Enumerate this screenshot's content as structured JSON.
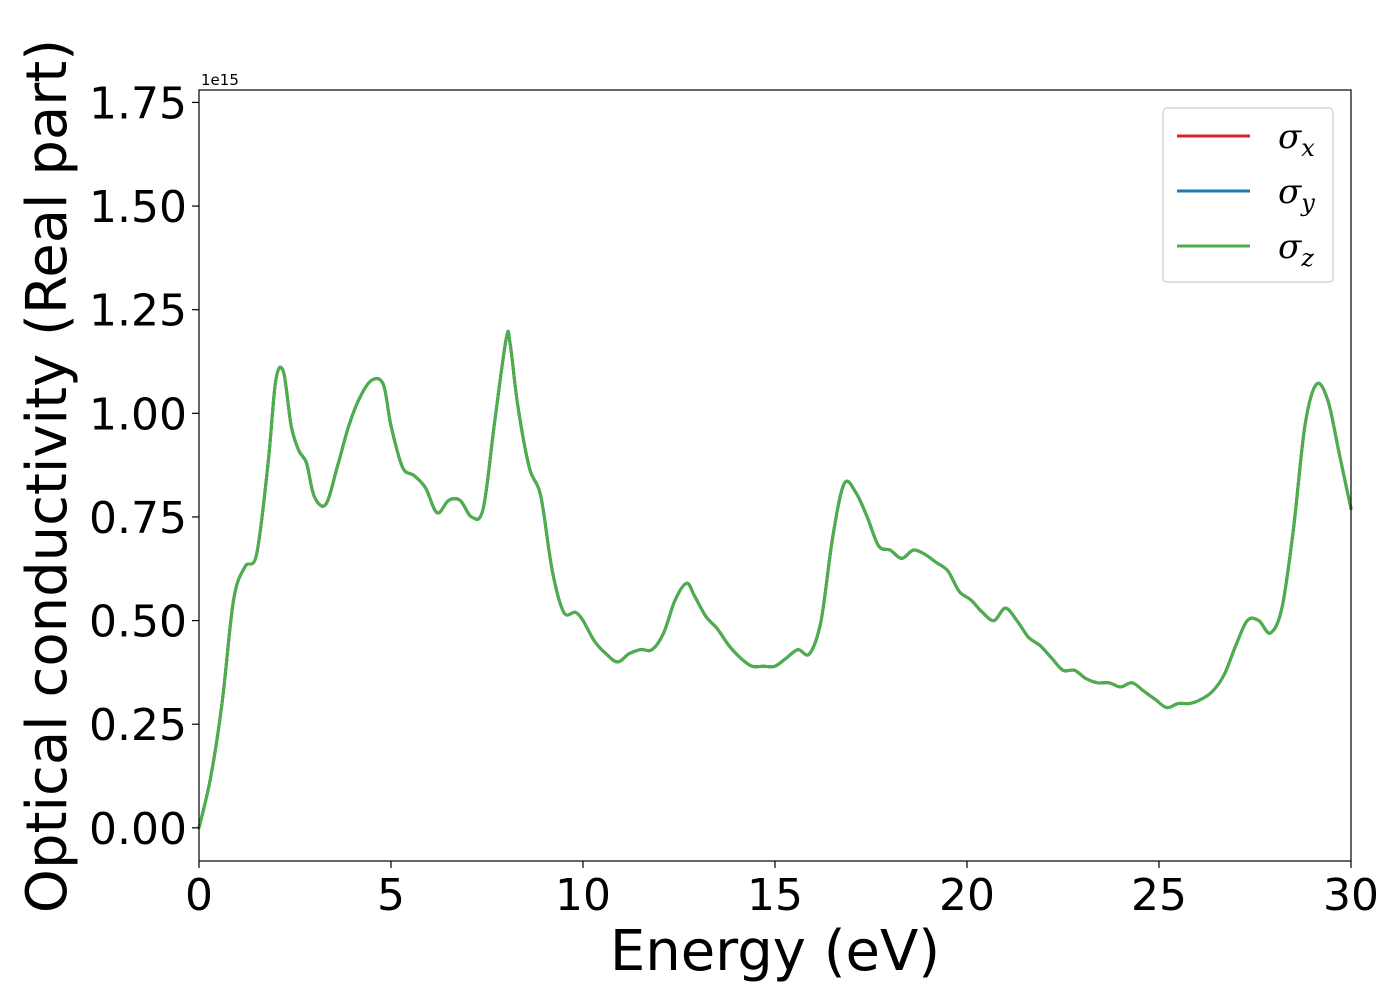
{
  "chart_data": {
    "type": "line",
    "xlabel": "Energy (eV)",
    "ylabel": "Optical conductivity (Real part)",
    "y_offset_text": "1e15",
    "xlim": [
      0,
      30
    ],
    "ylim": [
      -0.08,
      1.78
    ],
    "y_scale_factor": 1000000000000000.0,
    "xticks": [
      0,
      5,
      10,
      15,
      20,
      25,
      30
    ],
    "xtick_labels": [
      "0",
      "5",
      "10",
      "15",
      "20",
      "25",
      "30"
    ],
    "yticks": [
      0.0,
      0.25,
      0.5,
      0.75,
      1.0,
      1.25,
      1.5,
      1.75
    ],
    "ytick_labels": [
      "0.00",
      "0.25",
      "0.50",
      "0.75",
      "1.00",
      "1.25",
      "1.50",
      "1.75"
    ],
    "grid": false,
    "legend_position": "top-right",
    "series": [
      {
        "name": "σx",
        "symbol": "σ",
        "subscript": "x",
        "color": "#d62728"
      },
      {
        "name": "σy",
        "symbol": "σ",
        "subscript": "y",
        "color": "#1f77b4"
      },
      {
        "name": "σz",
        "symbol": "σ",
        "subscript": "z",
        "color": "#4daf4a"
      }
    ],
    "x": [
      0.0,
      0.3,
      0.6,
      0.9,
      1.2,
      1.5,
      1.8,
      2.0,
      2.2,
      2.4,
      2.6,
      2.8,
      3.0,
      3.3,
      3.6,
      3.9,
      4.2,
      4.5,
      4.8,
      5.0,
      5.3,
      5.6,
      5.9,
      6.2,
      6.5,
      6.8,
      7.1,
      7.4,
      7.7,
      8.0,
      8.1,
      8.3,
      8.6,
      8.9,
      9.2,
      9.5,
      9.8,
      10.0,
      10.3,
      10.6,
      10.9,
      11.2,
      11.5,
      11.8,
      12.1,
      12.4,
      12.7,
      12.9,
      13.2,
      13.5,
      13.8,
      14.1,
      14.4,
      14.7,
      15.0,
      15.3,
      15.6,
      15.9,
      16.2,
      16.5,
      16.8,
      17.1,
      17.4,
      17.7,
      18.0,
      18.3,
      18.6,
      18.9,
      19.2,
      19.5,
      19.8,
      20.1,
      20.4,
      20.7,
      21.0,
      21.3,
      21.6,
      21.9,
      22.2,
      22.5,
      22.8,
      23.1,
      23.4,
      23.7,
      24.0,
      24.3,
      24.6,
      24.9,
      25.2,
      25.5,
      25.8,
      26.1,
      26.4,
      26.7,
      27.0,
      27.3,
      27.6,
      27.9,
      28.2,
      28.5,
      28.8,
      29.1,
      29.4,
      29.7,
      30.0
    ],
    "values": [
      0.0,
      0.12,
      0.3,
      0.55,
      0.63,
      0.66,
      0.88,
      1.08,
      1.1,
      0.97,
      0.91,
      0.88,
      0.8,
      0.78,
      0.87,
      0.97,
      1.04,
      1.08,
      1.07,
      0.97,
      0.87,
      0.85,
      0.82,
      0.76,
      0.79,
      0.79,
      0.75,
      0.77,
      0.98,
      1.18,
      1.17,
      1.02,
      0.87,
      0.8,
      0.62,
      0.52,
      0.52,
      0.5,
      0.45,
      0.42,
      0.4,
      0.42,
      0.43,
      0.43,
      0.47,
      0.55,
      0.59,
      0.56,
      0.51,
      0.48,
      0.44,
      0.41,
      0.39,
      0.39,
      0.39,
      0.41,
      0.43,
      0.42,
      0.5,
      0.7,
      0.83,
      0.81,
      0.75,
      0.68,
      0.67,
      0.65,
      0.67,
      0.66,
      0.64,
      0.62,
      0.57,
      0.55,
      0.52,
      0.5,
      0.53,
      0.5,
      0.46,
      0.44,
      0.41,
      0.38,
      0.38,
      0.36,
      0.35,
      0.35,
      0.34,
      0.35,
      0.33,
      0.31,
      0.29,
      0.3,
      0.3,
      0.31,
      0.33,
      0.37,
      0.44,
      0.5,
      0.5,
      0.47,
      0.53,
      0.72,
      0.97,
      1.07,
      1.03,
      0.9,
      0.77
    ]
  }
}
